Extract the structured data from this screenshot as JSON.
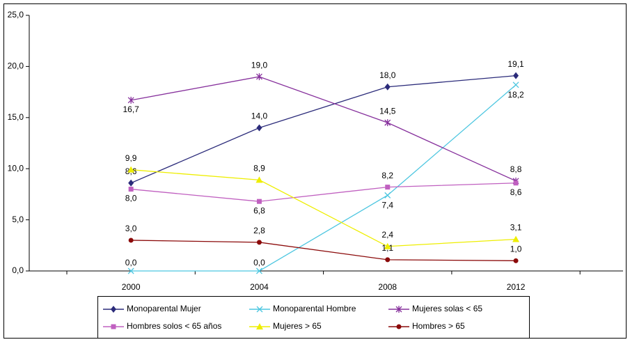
{
  "chart_data": {
    "type": "line",
    "categories": [
      "2000",
      "2004",
      "2008",
      "2012"
    ],
    "ylim": [
      0,
      25
    ],
    "yticks": [
      {
        "value": 0,
        "label": "0,0"
      },
      {
        "value": 5,
        "label": "5,0"
      },
      {
        "value": 10,
        "label": "10,0"
      },
      {
        "value": 15,
        "label": "15,0"
      },
      {
        "value": 20,
        "label": "20,0"
      },
      {
        "value": 25,
        "label": "25,0"
      }
    ],
    "grid": false,
    "legend": "bottom",
    "series": [
      {
        "name": "Monoparental Mujer",
        "color": "#2b2b7a",
        "values": [
          8.6,
          14.0,
          18.0,
          19.1
        ],
        "value_labels": [
          "8,6",
          "14,0",
          "18,0",
          "19,1"
        ]
      },
      {
        "name": "Monoparental Hombre",
        "color": "#4cc6e0",
        "values": [
          0.0,
          0.0,
          7.4,
          18.2
        ],
        "value_labels": [
          "0,0",
          "0,0",
          "7,4",
          "18,2"
        ]
      },
      {
        "name": "Mujeres solas < 65",
        "color": "#86309c",
        "values": [
          16.7,
          19.0,
          14.5,
          8.8
        ],
        "value_labels": [
          "16,7",
          "19,0",
          "14,5",
          "8,8"
        ]
      },
      {
        "name": "Hombres solos < 65 años",
        "color": "#c060c0",
        "values": [
          8.0,
          6.8,
          8.2,
          8.6
        ],
        "value_labels": [
          "8,0",
          "6,8",
          "8,2",
          "8,6"
        ]
      },
      {
        "name": "Mujeres > 65",
        "color": "#eeee00",
        "values": [
          9.9,
          8.9,
          2.4,
          3.1
        ],
        "value_labels": [
          "9,9",
          "8,9",
          "2,4",
          "3,1"
        ]
      },
      {
        "name": "Hombres > 65",
        "color": "#8b0a0a",
        "values": [
          3.0,
          2.8,
          1.1,
          1.0
        ],
        "value_labels": [
          "3,0",
          "2,8",
          "1,1",
          "1,0"
        ]
      }
    ]
  }
}
